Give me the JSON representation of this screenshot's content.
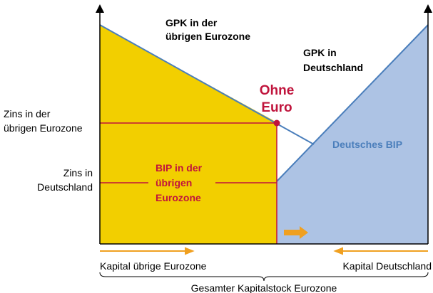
{
  "curves": {
    "gpk_rest": {
      "label": [
        "GPK in der",
        "übrigen Eurozone"
      ]
    },
    "gpk_de": {
      "label": [
        "GPK in",
        "Deutschland"
      ]
    }
  },
  "equilibrium": {
    "label": [
      "Ohne",
      "Euro"
    ]
  },
  "areas": {
    "bip_rest": {
      "label": [
        "BIP in der",
        "übrigen",
        "Eurozone"
      ]
    },
    "bip_de": {
      "label": "Deutsches BIP"
    }
  },
  "rates": {
    "rest": [
      "Zins in der",
      "übrigen Eurozone"
    ],
    "de": [
      "Zins in",
      "Deutschland"
    ]
  },
  "axis": {
    "left": "Kapital übrige Eurozone",
    "right": "Kapital Deutschland",
    "total": "Gesamter Kapitalstock Eurozone"
  }
}
